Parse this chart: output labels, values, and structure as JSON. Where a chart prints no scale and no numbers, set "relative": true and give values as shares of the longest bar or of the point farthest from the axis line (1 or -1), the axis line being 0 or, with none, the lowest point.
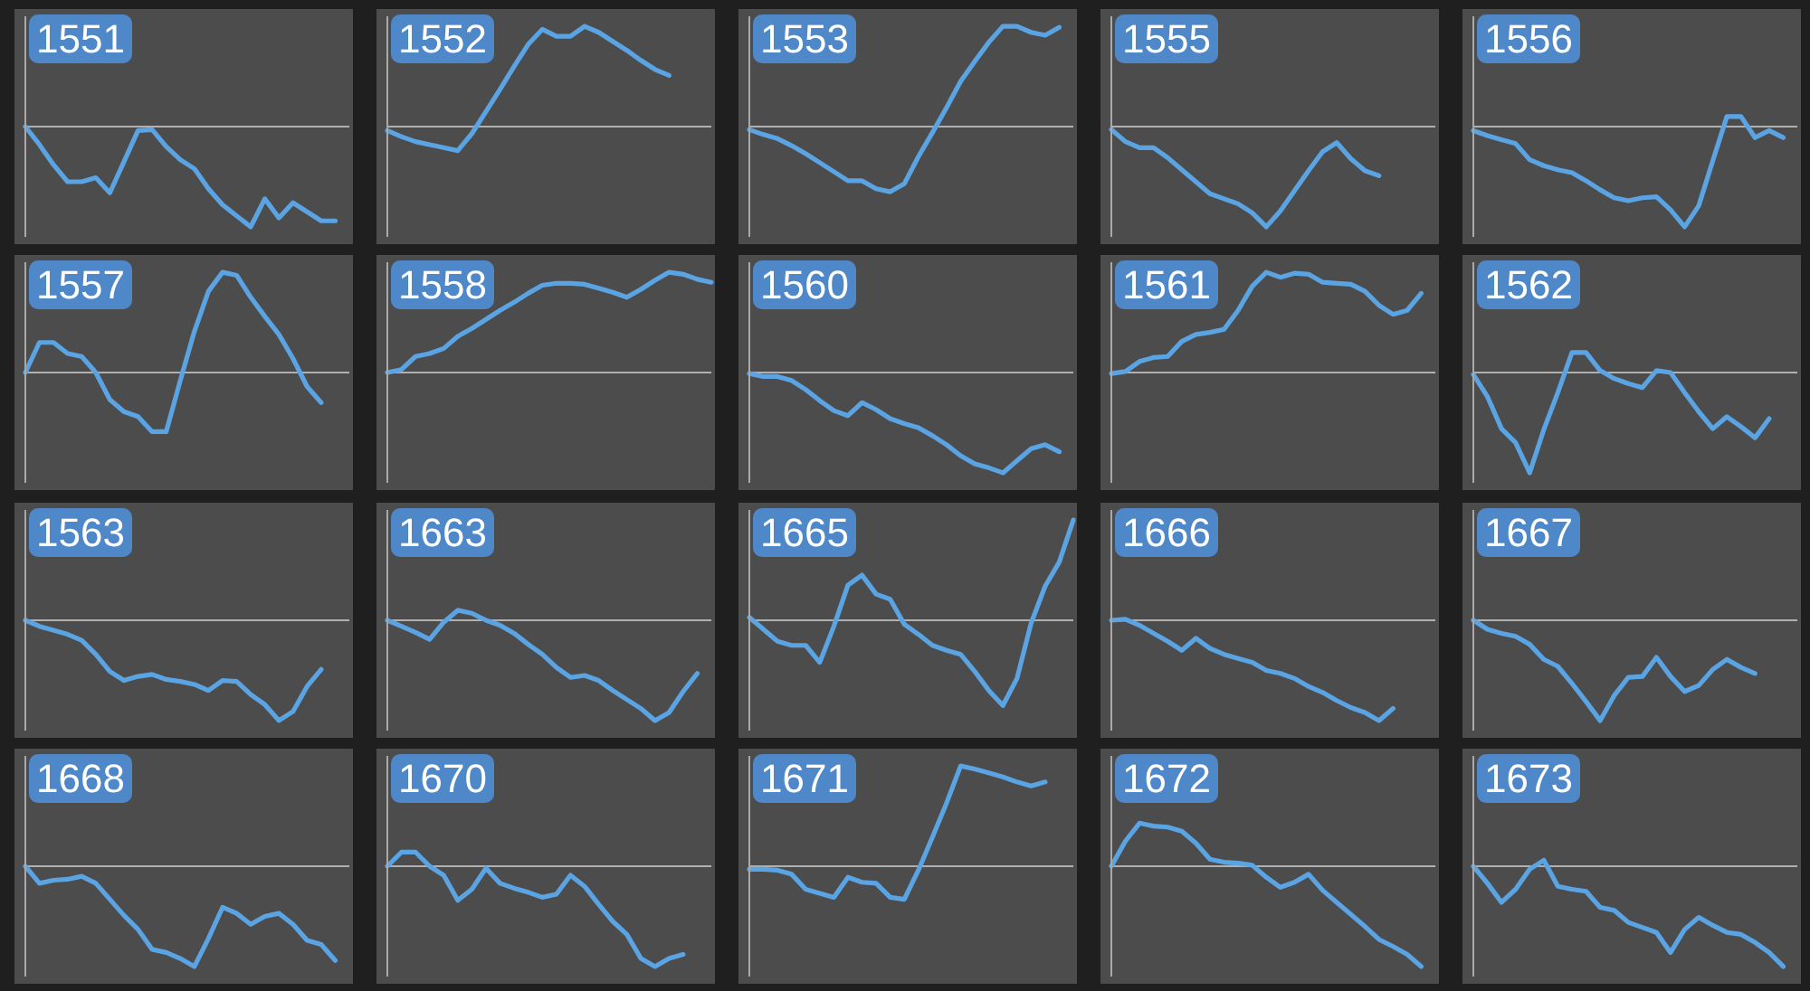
{
  "chart_data": [
    {
      "type": "line",
      "title": "1551",
      "relative": true,
      "color": "#5ba4e4",
      "categories": [
        null,
        null,
        null,
        null,
        null,
        null,
        null,
        null,
        null,
        null,
        null,
        null,
        null,
        null,
        null,
        null,
        null,
        null,
        null,
        null,
        null,
        null,
        null,
        null
      ],
      "values": [
        0,
        -0.18,
        -0.38,
        -0.55,
        -0.55,
        -0.51,
        -0.66,
        -0.35,
        -0.04,
        -0.03,
        -0.2,
        -0.33,
        -0.42,
        -0.62,
        -0.78,
        -0.89,
        -1,
        -0.72,
        -0.91,
        -0.76,
        -0.85,
        -0.94,
        -0.94,
        null
      ]
    },
    {
      "type": "line",
      "title": "1552",
      "relative": true,
      "color": "#5ba4e4",
      "categories": [
        null,
        null,
        null,
        null,
        null,
        null,
        null,
        null,
        null,
        null,
        null,
        null,
        null,
        null,
        null,
        null,
        null,
        null,
        null,
        null,
        null,
        null,
        null,
        null
      ],
      "values": [
        -0.04,
        -0.1,
        -0.15,
        -0.18,
        -0.21,
        -0.24,
        -0.07,
        0.15,
        0.37,
        0.6,
        0.82,
        0.97,
        0.9,
        0.9,
        1,
        0.94,
        0.85,
        0.76,
        0.66,
        0.57,
        0.51,
        null,
        null,
        null
      ]
    },
    {
      "type": "line",
      "title": "1553",
      "relative": true,
      "color": "#5ba4e4",
      "categories": [
        null,
        null,
        null,
        null,
        null,
        null,
        null,
        null,
        null,
        null,
        null,
        null,
        null,
        null,
        null,
        null,
        null,
        null,
        null,
        null,
        null,
        null,
        null,
        null
      ],
      "values": [
        -0.03,
        -0.08,
        -0.12,
        -0.19,
        -0.27,
        -0.36,
        -0.45,
        -0.54,
        -0.54,
        -0.62,
        -0.65,
        -0.57,
        -0.3,
        -0.06,
        0.19,
        0.45,
        0.65,
        0.84,
        1,
        1,
        0.94,
        0.91,
        0.99,
        null
      ]
    },
    {
      "type": "line",
      "title": "1555",
      "relative": true,
      "color": "#5ba4e4",
      "categories": [
        null,
        null,
        null,
        null,
        null,
        null,
        null,
        null,
        null,
        null,
        null,
        null,
        null,
        null,
        null,
        null,
        null,
        null,
        null,
        null,
        null,
        null,
        null,
        null
      ],
      "values": [
        -0.03,
        -0.15,
        -0.21,
        -0.21,
        -0.31,
        -0.43,
        -0.55,
        -0.67,
        -0.72,
        -0.77,
        -0.86,
        -1,
        -0.84,
        -0.64,
        -0.44,
        -0.25,
        -0.16,
        -0.32,
        -0.44,
        -0.49,
        null,
        null,
        null,
        null
      ]
    },
    {
      "type": "line",
      "title": "1556",
      "relative": true,
      "color": "#5ba4e4",
      "categories": [
        null,
        null,
        null,
        null,
        null,
        null,
        null,
        null,
        null,
        null,
        null,
        null,
        null,
        null,
        null,
        null,
        null,
        null,
        null,
        null,
        null,
        null,
        null,
        null
      ],
      "values": [
        -0.04,
        -0.09,
        -0.13,
        -0.17,
        -0.33,
        -0.39,
        -0.43,
        -0.46,
        -0.54,
        -0.63,
        -0.71,
        -0.74,
        -0.71,
        -0.7,
        -0.83,
        -1,
        -0.79,
        -0.34,
        0.1,
        0.1,
        -0.11,
        -0.04,
        -0.11,
        null
      ]
    },
    {
      "type": "line",
      "title": "1557",
      "relative": true,
      "color": "#5ba4e4",
      "categories": [
        null,
        null,
        null,
        null,
        null,
        null,
        null,
        null,
        null,
        null,
        null,
        null,
        null,
        null,
        null,
        null,
        null,
        null,
        null,
        null,
        null,
        null,
        null,
        null
      ],
      "values": [
        0,
        0.3,
        0.3,
        0.19,
        0.16,
        0,
        -0.27,
        -0.39,
        -0.44,
        -0.59,
        -0.59,
        -0.08,
        0.41,
        0.81,
        1,
        0.97,
        0.75,
        0.56,
        0.38,
        0.14,
        -0.14,
        -0.3,
        null,
        null
      ]
    },
    {
      "type": "line",
      "title": "1558",
      "relative": true,
      "color": "#5ba4e4",
      "categories": [
        null,
        null,
        null,
        null,
        null,
        null,
        null,
        null,
        null,
        null,
        null,
        null,
        null,
        null,
        null,
        null,
        null,
        null,
        null,
        null,
        null,
        null,
        null,
        null
      ],
      "values": [
        0,
        0.03,
        0.16,
        0.19,
        0.24,
        0.36,
        0.44,
        0.53,
        0.62,
        0.7,
        0.79,
        0.87,
        0.89,
        0.89,
        0.88,
        0.84,
        0.8,
        0.75,
        0.83,
        0.92,
        1,
        0.98,
        0.93,
        0.9
      ]
    },
    {
      "type": "line",
      "title": "1560",
      "relative": true,
      "color": "#5ba4e4",
      "categories": [
        null,
        null,
        null,
        null,
        null,
        null,
        null,
        null,
        null,
        null,
        null,
        null,
        null,
        null,
        null,
        null,
        null,
        null,
        null,
        null,
        null,
        null,
        null,
        null
      ],
      "values": [
        -0.01,
        -0.04,
        -0.04,
        -0.08,
        -0.17,
        -0.28,
        -0.38,
        -0.43,
        -0.3,
        -0.37,
        -0.46,
        -0.51,
        -0.55,
        -0.63,
        -0.72,
        -0.83,
        -0.91,
        -0.95,
        -1,
        -0.88,
        -0.76,
        -0.72,
        -0.79,
        null
      ]
    },
    {
      "type": "line",
      "title": "1561",
      "relative": true,
      "color": "#5ba4e4",
      "categories": [
        null,
        null,
        null,
        null,
        null,
        null,
        null,
        null,
        null,
        null,
        null,
        null,
        null,
        null,
        null,
        null,
        null,
        null,
        null,
        null,
        null,
        null,
        null,
        null
      ],
      "values": [
        -0.01,
        0.01,
        0.11,
        0.15,
        0.16,
        0.31,
        0.38,
        0.4,
        0.43,
        0.62,
        0.86,
        1,
        0.95,
        0.99,
        0.98,
        0.9,
        0.89,
        0.88,
        0.81,
        0.67,
        0.58,
        0.62,
        0.79,
        null
      ]
    },
    {
      "type": "line",
      "title": "1562",
      "relative": true,
      "color": "#5ba4e4",
      "categories": [
        null,
        null,
        null,
        null,
        null,
        null,
        null,
        null,
        null,
        null,
        null,
        null,
        null,
        null,
        null,
        null,
        null,
        null,
        null,
        null,
        null,
        null,
        null,
        null
      ],
      "values": [
        -0.02,
        -0.24,
        -0.56,
        -0.7,
        -1,
        -0.57,
        -0.2,
        0.2,
        0.2,
        0.02,
        -0.06,
        -0.11,
        -0.15,
        0.02,
        0,
        -0.2,
        -0.39,
        -0.56,
        -0.44,
        -0.54,
        -0.65,
        -0.46,
        null,
        null
      ]
    },
    {
      "type": "line",
      "title": "1563",
      "relative": true,
      "color": "#5ba4e4",
      "categories": [
        null,
        null,
        null,
        null,
        null,
        null,
        null,
        null,
        null,
        null,
        null,
        null,
        null,
        null,
        null,
        null,
        null,
        null,
        null,
        null,
        null,
        null,
        null,
        null
      ],
      "values": [
        0,
        -0.06,
        -0.1,
        -0.14,
        -0.2,
        -0.34,
        -0.51,
        -0.6,
        -0.56,
        -0.54,
        -0.59,
        -0.61,
        -0.64,
        -0.7,
        -0.6,
        -0.61,
        -0.74,
        -0.84,
        -1,
        -0.91,
        -0.66,
        -0.49,
        null,
        null
      ]
    },
    {
      "type": "line",
      "title": "1663",
      "relative": true,
      "color": "#5ba4e4",
      "categories": [
        null,
        null,
        null,
        null,
        null,
        null,
        null,
        null,
        null,
        null,
        null,
        null,
        null,
        null,
        null,
        null,
        null,
        null,
        null,
        null,
        null,
        null,
        null,
        null
      ],
      "values": [
        0,
        -0.06,
        -0.12,
        -0.19,
        -0.02,
        0.1,
        0.07,
        0,
        -0.05,
        -0.13,
        -0.24,
        -0.34,
        -0.47,
        -0.57,
        -0.55,
        -0.6,
        -0.7,
        -0.79,
        -0.88,
        -1,
        -0.92,
        -0.71,
        -0.53,
        null
      ]
    },
    {
      "type": "line",
      "title": "1665",
      "relative": true,
      "color": "#5ba4e4",
      "categories": [
        null,
        null,
        null,
        null,
        null,
        null,
        null,
        null,
        null,
        null,
        null,
        null,
        null,
        null,
        null,
        null,
        null,
        null,
        null,
        null,
        null,
        null,
        null,
        null
      ],
      "values": [
        0.03,
        -0.09,
        -0.21,
        -0.25,
        -0.25,
        -0.42,
        -0.06,
        0.35,
        0.45,
        0.26,
        0.21,
        -0.04,
        -0.14,
        -0.25,
        -0.3,
        -0.34,
        -0.51,
        -0.7,
        -0.85,
        -0.58,
        -0.03,
        0.34,
        0.58,
        1
      ]
    },
    {
      "type": "line",
      "title": "1666",
      "relative": true,
      "color": "#5ba4e4",
      "categories": [
        null,
        null,
        null,
        null,
        null,
        null,
        null,
        null,
        null,
        null,
        null,
        null,
        null,
        null,
        null,
        null,
        null,
        null,
        null,
        null,
        null,
        null,
        null,
        null
      ],
      "values": [
        0,
        0.01,
        -0.05,
        -0.13,
        -0.21,
        -0.3,
        -0.18,
        -0.28,
        -0.34,
        -0.38,
        -0.42,
        -0.5,
        -0.53,
        -0.58,
        -0.66,
        -0.72,
        -0.8,
        -0.87,
        -0.92,
        -1,
        -0.88,
        null,
        null,
        null
      ]
    },
    {
      "type": "line",
      "title": "1667",
      "relative": true,
      "color": "#5ba4e4",
      "categories": [
        null,
        null,
        null,
        null,
        null,
        null,
        null,
        null,
        null,
        null,
        null,
        null,
        null,
        null,
        null,
        null,
        null,
        null,
        null,
        null,
        null,
        null,
        null,
        null
      ],
      "values": [
        0,
        -0.09,
        -0.13,
        -0.16,
        -0.24,
        -0.39,
        -0.46,
        -0.63,
        -0.81,
        -1,
        -0.75,
        -0.57,
        -0.56,
        -0.37,
        -0.56,
        -0.71,
        -0.65,
        -0.49,
        -0.39,
        -0.47,
        -0.53,
        null,
        null,
        null
      ]
    },
    {
      "type": "line",
      "title": "1668",
      "relative": true,
      "color": "#5ba4e4",
      "categories": [
        null,
        null,
        null,
        null,
        null,
        null,
        null,
        null,
        null,
        null,
        null,
        null,
        null,
        null,
        null,
        null,
        null,
        null,
        null,
        null,
        null,
        null,
        null,
        null
      ],
      "values": [
        0,
        -0.17,
        -0.14,
        -0.13,
        -0.1,
        -0.17,
        -0.33,
        -0.49,
        -0.63,
        -0.83,
        -0.86,
        -0.92,
        -1,
        -0.72,
        -0.41,
        -0.47,
        -0.58,
        -0.5,
        -0.47,
        -0.58,
        -0.74,
        -0.78,
        -0.94,
        null
      ]
    },
    {
      "type": "line",
      "title": "1670",
      "relative": true,
      "color": "#5ba4e4",
      "categories": [
        null,
        null,
        null,
        null,
        null,
        null,
        null,
        null,
        null,
        null,
        null,
        null,
        null,
        null,
        null,
        null,
        null,
        null,
        null,
        null,
        null,
        null,
        null,
        null
      ],
      "values": [
        0,
        0.14,
        0.14,
        0,
        -0.09,
        -0.34,
        -0.23,
        -0.02,
        -0.17,
        -0.22,
        -0.26,
        -0.31,
        -0.28,
        -0.09,
        -0.2,
        -0.38,
        -0.55,
        -0.68,
        -0.92,
        -1,
        -0.92,
        -0.88,
        null,
        null
      ]
    },
    {
      "type": "line",
      "title": "1671",
      "relative": true,
      "color": "#5ba4e4",
      "categories": [
        null,
        null,
        null,
        null,
        null,
        null,
        null,
        null,
        null,
        null,
        null,
        null,
        null,
        null,
        null,
        null,
        null,
        null,
        null,
        null,
        null,
        null,
        null,
        null
      ],
      "values": [
        -0.03,
        -0.03,
        -0.04,
        -0.08,
        -0.23,
        -0.27,
        -0.31,
        -0.11,
        -0.16,
        -0.17,
        -0.31,
        -0.33,
        -0.04,
        0.29,
        0.63,
        1,
        0.97,
        0.93,
        0.89,
        0.84,
        0.8,
        0.84,
        null,
        null
      ]
    },
    {
      "type": "line",
      "title": "1672",
      "relative": true,
      "color": "#5ba4e4",
      "categories": [
        null,
        null,
        null,
        null,
        null,
        null,
        null,
        null,
        null,
        null,
        null,
        null,
        null,
        null,
        null,
        null,
        null,
        null,
        null,
        null,
        null,
        null,
        null,
        null
      ],
      "values": [
        0,
        0.25,
        0.43,
        0.4,
        0.39,
        0.35,
        0.23,
        0.07,
        0.04,
        0.03,
        0.01,
        -0.11,
        -0.21,
        -0.16,
        -0.08,
        -0.24,
        -0.36,
        -0.48,
        -0.6,
        -0.73,
        -0.8,
        -0.88,
        -1,
        null
      ]
    },
    {
      "type": "line",
      "title": "1673",
      "relative": true,
      "color": "#5ba4e4",
      "categories": [
        null,
        null,
        null,
        null,
        null,
        null,
        null,
        null,
        null,
        null,
        null,
        null,
        null,
        null,
        null,
        null,
        null,
        null,
        null,
        null,
        null,
        null,
        null,
        null
      ],
      "values": [
        0,
        -0.17,
        -0.36,
        -0.23,
        -0.03,
        0.06,
        -0.2,
        -0.23,
        -0.25,
        -0.41,
        -0.44,
        -0.56,
        -0.61,
        -0.66,
        -0.86,
        -0.63,
        -0.51,
        -0.59,
        -0.66,
        -0.68,
        -0.76,
        -0.86,
        -1,
        null
      ]
    }
  ]
}
